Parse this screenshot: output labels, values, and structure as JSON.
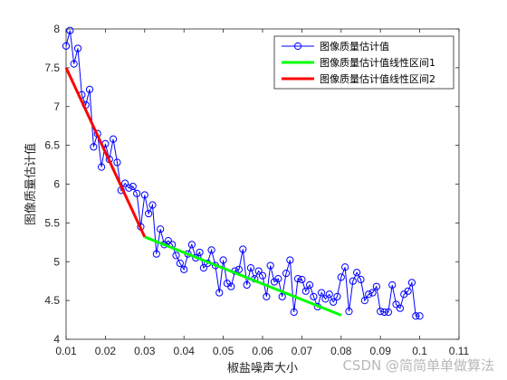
{
  "chart_data": {
    "type": "line",
    "title": "",
    "xlabel": "椒盐噪声大小",
    "ylabel": "图像质量估计值",
    "xlim": [
      0.01,
      0.11
    ],
    "ylim": [
      4,
      8
    ],
    "xticks": [
      "0.01",
      "0.02",
      "0.03",
      "0.04",
      "0.05",
      "0.06",
      "0.07",
      "0.08",
      "0.09",
      "0.1",
      "0.11"
    ],
    "yticks": [
      "4",
      "4.5",
      "5",
      "5.5",
      "6",
      "6.5",
      "7",
      "7.5",
      "8"
    ],
    "grid": false,
    "legend_position": "top-right",
    "series": [
      {
        "name": "图像质量估计值",
        "color": "#0000ff",
        "marker": "circle",
        "x": [
          0.01,
          0.011,
          0.012,
          0.013,
          0.014,
          0.015,
          0.016,
          0.017,
          0.018,
          0.019,
          0.02,
          0.021,
          0.022,
          0.023,
          0.024,
          0.025,
          0.026,
          0.027,
          0.028,
          0.029,
          0.03,
          0.031,
          0.032,
          0.033,
          0.034,
          0.035,
          0.036,
          0.037,
          0.038,
          0.039,
          0.04,
          0.041,
          0.042,
          0.043,
          0.044,
          0.045,
          0.046,
          0.047,
          0.048,
          0.049,
          0.05,
          0.051,
          0.052,
          0.053,
          0.054,
          0.055,
          0.056,
          0.057,
          0.058,
          0.059,
          0.06,
          0.061,
          0.062,
          0.063,
          0.064,
          0.065,
          0.066,
          0.067,
          0.068,
          0.069,
          0.07,
          0.071,
          0.072,
          0.073,
          0.074,
          0.075,
          0.076,
          0.077,
          0.078,
          0.079,
          0.08,
          0.081,
          0.082,
          0.083,
          0.084,
          0.085,
          0.086,
          0.087,
          0.088,
          0.089,
          0.09,
          0.091,
          0.092,
          0.093,
          0.094,
          0.095,
          0.096,
          0.097,
          0.098,
          0.099,
          0.1
        ],
        "values": [
          7.78,
          7.98,
          7.55,
          7.75,
          7.15,
          7.02,
          7.22,
          6.48,
          6.65,
          6.22,
          6.52,
          6.32,
          6.58,
          6.28,
          5.92,
          6.01,
          5.95,
          5.97,
          5.88,
          5.45,
          5.86,
          5.62,
          5.73,
          5.1,
          5.42,
          5.22,
          5.27,
          5.22,
          5.08,
          4.98,
          4.9,
          5.1,
          5.22,
          5.05,
          5.12,
          4.92,
          4.98,
          5.15,
          4.95,
          4.6,
          5.02,
          4.72,
          4.68,
          4.88,
          4.9,
          5.16,
          4.7,
          4.92,
          4.78,
          4.88,
          4.82,
          4.55,
          4.95,
          4.74,
          4.78,
          4.55,
          4.85,
          5.02,
          4.35,
          4.78,
          4.77,
          4.62,
          4.7,
          4.55,
          4.42,
          4.6,
          4.52,
          4.58,
          4.48,
          4.55,
          4.8,
          4.93,
          4.36,
          4.75,
          4.86,
          4.77,
          4.5,
          4.58,
          4.6,
          4.68,
          4.36,
          4.35,
          4.35,
          4.7,
          4.45,
          4.4,
          4.58,
          4.62,
          4.73,
          4.3,
          4.3
        ]
      },
      {
        "name": "图像质量估计值线性区间1",
        "color": "#00ff00",
        "x": [
          0.03,
          0.08
        ],
        "values": [
          5.32,
          4.31
        ]
      },
      {
        "name": "图像质量估计值线性区间2",
        "color": "#ff0000",
        "x": [
          0.01,
          0.03
        ],
        "values": [
          7.5,
          5.32
        ]
      }
    ]
  },
  "watermark": "CSDN @简简单单做算法"
}
